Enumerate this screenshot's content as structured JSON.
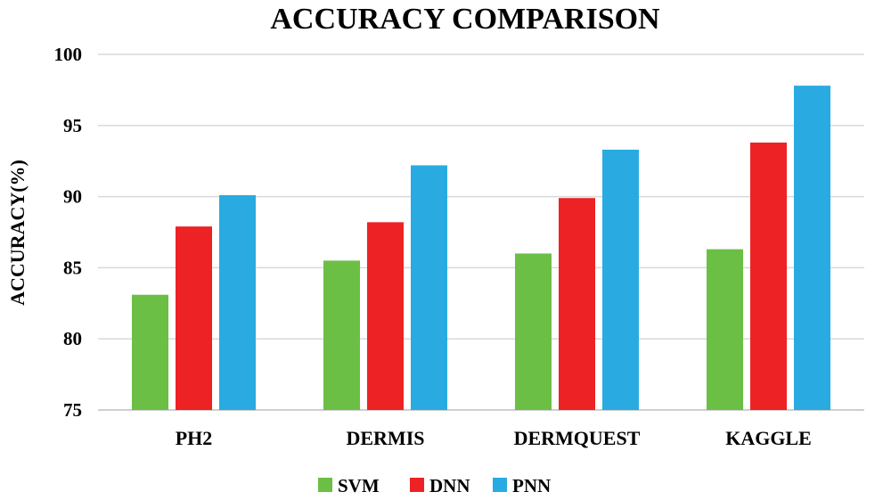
{
  "chart_data": {
    "type": "bar",
    "title": "ACCURACY COMPARISON",
    "xlabel": "",
    "ylabel": "ACCURACY(%)",
    "categories": [
      "PH2",
      "DERMIS",
      "DERMQUEST",
      "KAGGLE"
    ],
    "series": [
      {
        "name": "SVM",
        "color": "#6bbf45",
        "values": [
          83.1,
          85.5,
          86.0,
          86.3
        ]
      },
      {
        "name": "DNN",
        "color": "#ed2224",
        "values": [
          87.9,
          88.2,
          89.9,
          93.8
        ]
      },
      {
        "name": "PNN",
        "color": "#29abe2",
        "values": [
          90.1,
          92.2,
          93.3,
          97.8
        ]
      }
    ],
    "ylim": [
      75,
      100
    ],
    "yticks": [
      75,
      80,
      85,
      90,
      95,
      100
    ],
    "grid": true,
    "legend": "bottom"
  }
}
